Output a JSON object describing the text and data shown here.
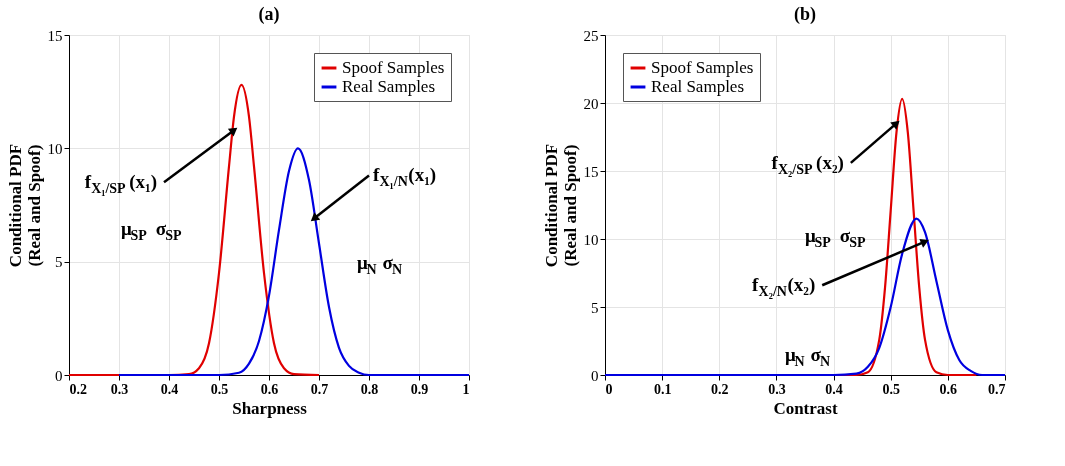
{
  "chart_data": [
    {
      "type": "line",
      "title": "(a)",
      "xlabel": "Sharpness",
      "ylabel": "Conditional PDF\n(Real and Spoof)",
      "xlim": [
        0.2,
        1
      ],
      "xticks": [
        0.2,
        0.3,
        0.4,
        0.5,
        0.6,
        0.7,
        0.8,
        0.9,
        1
      ],
      "ylim": [
        0,
        15
      ],
      "yticks": [
        0,
        5,
        10,
        15
      ],
      "grid": true,
      "legend": "top right",
      "series": [
        {
          "name": "Spoof Samples",
          "color": "#e00000",
          "x": [
            0.2,
            0.4,
            0.44,
            0.46,
            0.48,
            0.5,
            0.52,
            0.53,
            0.545,
            0.56,
            0.57,
            0.59,
            0.61,
            0.63,
            0.65,
            0.7
          ],
          "values": [
            0,
            0,
            0.04,
            0.3,
            1.4,
            4.5,
            9.2,
            11.4,
            12.8,
            11.4,
            9.2,
            4.5,
            1.4,
            0.3,
            0.04,
            0
          ]
        },
        {
          "name": "Real Samples",
          "color": "#0000e0",
          "x": [
            0.3,
            0.5,
            0.54,
            0.56,
            0.58,
            0.6,
            0.62,
            0.64,
            0.658,
            0.68,
            0.7,
            0.72,
            0.74,
            0.76,
            0.78,
            0.8,
            1
          ],
          "values": [
            0,
            0,
            0.1,
            0.5,
            1.5,
            3.5,
            6.4,
            9.0,
            10.0,
            8.6,
            5.8,
            3.0,
            1.2,
            0.4,
            0.1,
            0,
            0
          ]
        }
      ],
      "annotations": [
        {
          "text": "f$_{X₁/SP}$(x₁)",
          "x": 0.53,
          "y": 10.8
        },
        {
          "text": "f$_{X₁/N}$(x₁)",
          "x": 0.69,
          "y": 6.9
        },
        "μ$_{SP}$ σ$_{SP}$",
        "μ$_{N}$ σ$_{N}$"
      ]
    },
    {
      "type": "line",
      "title": "(b)",
      "xlabel": "Contrast",
      "ylabel": "Conditional PDF\n(Real and Spoof)",
      "xlim": [
        0,
        0.7
      ],
      "xticks": [
        0,
        0.1,
        0.2,
        0.3,
        0.4,
        0.5,
        0.6,
        0.7
      ],
      "ylim": [
        0,
        25
      ],
      "yticks": [
        0,
        5,
        10,
        15,
        20,
        25
      ],
      "grid": true,
      "legend": "top left",
      "series": [
        {
          "name": "Spoof Samples",
          "color": "#e00000",
          "x": [
            0,
            0.44,
            0.46,
            0.48,
            0.49,
            0.5,
            0.51,
            0.52,
            0.53,
            0.54,
            0.55,
            0.56,
            0.58,
            0.6,
            0.65
          ],
          "values": [
            0,
            0,
            0.2,
            2.6,
            6.4,
            12.1,
            17.8,
            20.3,
            17.8,
            12.1,
            6.4,
            2.6,
            0.2,
            0,
            0
          ]
        },
        {
          "name": "Real Samples",
          "color": "#0000e0",
          "x": [
            0,
            0.4,
            0.44,
            0.46,
            0.48,
            0.5,
            0.52,
            0.545,
            0.56,
            0.58,
            0.6,
            0.62,
            0.64,
            0.66,
            0.7
          ],
          "values": [
            0,
            0,
            0.1,
            0.6,
            2.0,
            5.0,
            8.9,
            11.5,
            10.5,
            6.9,
            3.3,
            1.1,
            0.3,
            0,
            0
          ]
        }
      ],
      "annotations": [
        {
          "text": "f$_{X₂/SP}$(x₂)",
          "x": 0.51,
          "y": 18.5
        },
        {
          "text": "f$_{X₂/N}$(x₂)",
          "x": 0.56,
          "y": 9.8
        },
        "μ$_{SP}$ σ$_{SP}$",
        "μ$_{N}$ σ$_{N}$"
      ]
    }
  ]
}
